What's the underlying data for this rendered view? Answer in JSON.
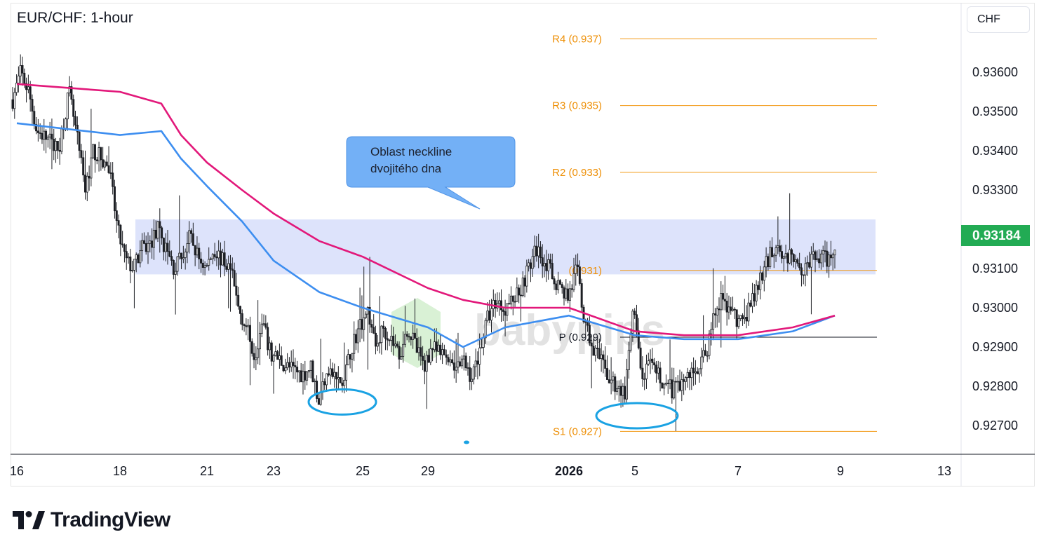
{
  "chart_title": "EUR/CHF: 1-hour",
  "currency_label": "CHF",
  "last_price": "0.93184",
  "annotation_text": [
    "Oblast neckline",
    "dvojitého dna"
  ],
  "watermark": "babypips",
  "branding": "TradingView",
  "colors": {
    "ma_fast": "#3d8ef0",
    "ma_slow": "#e2187a",
    "candle": "#1d1f24",
    "pivot_line": "#f29a14",
    "pivot_text": "#ee8f05",
    "neckline_zone": "#dde3fb",
    "callout_fill": "#73b0f6",
    "ellipse": "#1aa2e3",
    "price_tag": "#22ab54"
  },
  "chart_data": {
    "type": "candlestick",
    "title": "EUR/CHF: 1-hour",
    "timeframe": "1-hour",
    "y_axis": {
      "side": "right",
      "unit": "CHF",
      "ticks": [
        "0.93600",
        "0.93500",
        "0.93400",
        "0.93300",
        "0.93100",
        "0.93000",
        "0.92900",
        "0.92800",
        "0.92700"
      ],
      "range": [
        0.9256,
        0.9376
      ]
    },
    "x_axis": {
      "ticks": [
        "16",
        "18",
        "21",
        "23",
        "25",
        "29",
        "2026",
        "5",
        "7",
        "9",
        "13"
      ],
      "bold_tick": "2026"
    },
    "pivot_levels": [
      {
        "label": "R4 (0.937)",
        "value": 0.93685
      },
      {
        "label": "R3 (0.935)",
        "value": 0.93515
      },
      {
        "label": "R2 (0.933)",
        "value": 0.93345
      },
      {
        "label": "(0.931)",
        "value": 0.93095
      },
      {
        "label": "P (0.929)",
        "value": 0.92925
      },
      {
        "label": "S1 (0.927)",
        "value": 0.92685
      }
    ],
    "neckline_zone": {
      "from": 0.93085,
      "to": 0.93225
    },
    "last_price": 0.93184,
    "ma_fast_points": [
      [
        16,
        0.9347
      ],
      [
        18,
        0.9344
      ],
      [
        19,
        0.9345
      ],
      [
        20,
        0.9338
      ],
      [
        21,
        0.9331
      ],
      [
        22,
        0.9322
      ],
      [
        23,
        0.9312
      ],
      [
        24,
        0.9304
      ],
      [
        25,
        0.93
      ],
      [
        29,
        0.9295
      ],
      [
        30,
        0.929
      ],
      [
        31,
        0.9295
      ],
      [
        2026,
        0.9298
      ],
      [
        5,
        0.9293
      ],
      [
        6,
        0.9292
      ],
      [
        7,
        0.9292
      ],
      [
        8,
        0.9294
      ],
      [
        9,
        0.9298
      ]
    ],
    "ma_slow_points": [
      [
        16,
        0.9357
      ],
      [
        18,
        0.9355
      ],
      [
        19,
        0.9352
      ],
      [
        20,
        0.9344
      ],
      [
        21,
        0.9337
      ],
      [
        22,
        0.933
      ],
      [
        23,
        0.9324
      ],
      [
        24,
        0.9317
      ],
      [
        25,
        0.9313
      ],
      [
        29,
        0.9305
      ],
      [
        30,
        0.9302
      ],
      [
        31,
        0.93
      ],
      [
        2026,
        0.93
      ],
      [
        5,
        0.9294
      ],
      [
        6,
        0.9293
      ],
      [
        7,
        0.9293
      ],
      [
        8,
        0.9295
      ],
      [
        9,
        0.9298
      ]
    ],
    "candle_path": [
      [
        0,
        0.9353
      ],
      [
        6,
        0.936
      ],
      [
        12,
        0.9355
      ],
      [
        18,
        0.9345
      ],
      [
        26,
        0.9343
      ],
      [
        34,
        0.934
      ],
      [
        42,
        0.9355
      ],
      [
        48,
        0.9343
      ],
      [
        54,
        0.933
      ],
      [
        60,
        0.934
      ],
      [
        66,
        0.9338
      ],
      [
        72,
        0.9335
      ],
      [
        78,
        0.932
      ],
      [
        84,
        0.9312
      ],
      [
        90,
        0.931
      ],
      [
        96,
        0.9315
      ],
      [
        102,
        0.9316
      ],
      [
        108,
        0.932
      ],
      [
        114,
        0.9315
      ],
      [
        120,
        0.931
      ],
      [
        126,
        0.9313
      ],
      [
        132,
        0.9318
      ],
      [
        138,
        0.9313
      ],
      [
        144,
        0.931
      ],
      [
        150,
        0.9315
      ],
      [
        156,
        0.9312
      ],
      [
        162,
        0.931
      ],
      [
        168,
        0.93
      ],
      [
        174,
        0.9295
      ],
      [
        180,
        0.9288
      ],
      [
        186,
        0.9296
      ],
      [
        192,
        0.9288
      ],
      [
        198,
        0.9287
      ],
      [
        204,
        0.9285
      ],
      [
        210,
        0.9284
      ],
      [
        216,
        0.9283
      ],
      [
        222,
        0.9285
      ],
      [
        228,
        0.9276
      ],
      [
        234,
        0.9285
      ],
      [
        240,
        0.9282
      ],
      [
        246,
        0.928
      ],
      [
        252,
        0.929
      ],
      [
        258,
        0.9295
      ],
      [
        264,
        0.93
      ],
      [
        270,
        0.929
      ],
      [
        276,
        0.9295
      ],
      [
        282,
        0.9292
      ],
      [
        288,
        0.9288
      ],
      [
        294,
        0.9295
      ],
      [
        300,
        0.929
      ],
      [
        306,
        0.9285
      ],
      [
        312,
        0.929
      ],
      [
        318,
        0.9288
      ],
      [
        324,
        0.9288
      ],
      [
        330,
        0.9285
      ],
      [
        336,
        0.9286
      ],
      [
        342,
        0.9282
      ],
      [
        348,
        0.929
      ],
      [
        354,
        0.9298
      ],
      [
        360,
        0.9302
      ],
      [
        366,
        0.93
      ],
      [
        372,
        0.9302
      ],
      [
        378,
        0.9305
      ],
      [
        384,
        0.931
      ],
      [
        390,
        0.9315
      ],
      [
        396,
        0.9312
      ],
      [
        402,
        0.9308
      ],
      [
        408,
        0.9305
      ],
      [
        414,
        0.9303
      ],
      [
        420,
        0.931
      ],
      [
        426,
        0.9295
      ],
      [
        432,
        0.929
      ],
      [
        438,
        0.9286
      ],
      [
        444,
        0.9282
      ],
      [
        450,
        0.928
      ],
      [
        456,
        0.9278
      ],
      [
        462,
        0.93
      ],
      [
        468,
        0.9282
      ],
      [
        474,
        0.9285
      ],
      [
        480,
        0.9283
      ],
      [
        486,
        0.928
      ],
      [
        492,
        0.9279
      ],
      [
        498,
        0.9281
      ],
      [
        504,
        0.9283
      ],
      [
        510,
        0.9285
      ],
      [
        516,
        0.9288
      ],
      [
        522,
        0.9298
      ],
      [
        528,
        0.9302
      ],
      [
        534,
        0.93
      ],
      [
        540,
        0.9296
      ],
      [
        546,
        0.9298
      ],
      [
        552,
        0.9303
      ],
      [
        558,
        0.9308
      ],
      [
        564,
        0.9314
      ],
      [
        570,
        0.9316
      ],
      [
        576,
        0.9312
      ],
      [
        582,
        0.9314
      ],
      [
        588,
        0.931
      ],
      [
        594,
        0.9312
      ],
      [
        600,
        0.9313
      ],
      [
        606,
        0.9312
      ],
      [
        612,
        0.9316
      ]
    ],
    "double_bottom_marks": [
      {
        "x": 24.5,
        "y": 0.9276
      },
      {
        "x": 5,
        "y": 0.92725
      }
    ]
  }
}
